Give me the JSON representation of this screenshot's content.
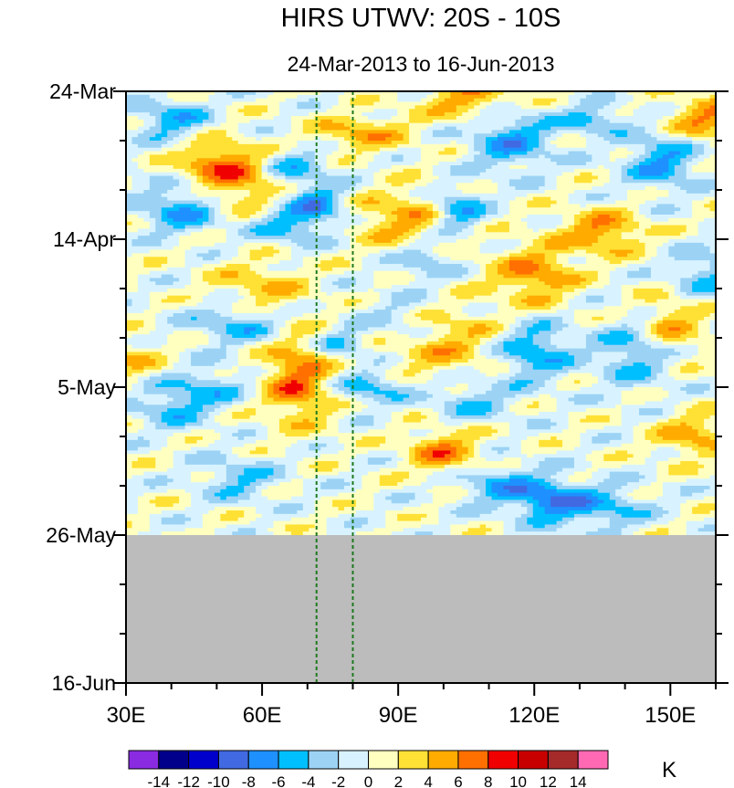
{
  "chart_data": {
    "type": "heatmap",
    "title": "HIRS UTWV: 20S - 10S",
    "subtitle": "24-Mar-2013 to 16-Jun-2013",
    "x_ticks": [
      {
        "value": 30,
        "label": "30E"
      },
      {
        "value": 60,
        "label": "60E"
      },
      {
        "value": 90,
        "label": "90E"
      },
      {
        "value": 120,
        "label": "120E"
      },
      {
        "value": 150,
        "label": "150E"
      }
    ],
    "xlim": [
      30,
      160
    ],
    "y_ticks": [
      {
        "value": 0,
        "label": "24-Mar"
      },
      {
        "value": 21,
        "label": "14-Apr"
      },
      {
        "value": 42,
        "label": "5-May"
      },
      {
        "value": 63,
        "label": "26-May"
      },
      {
        "value": 84,
        "label": "16-Jun"
      }
    ],
    "y_range_days": [
      0,
      84
    ],
    "missing_data_from_day": 63,
    "reference_lines_lon": [
      72,
      80
    ],
    "colorbar": {
      "unit": "K",
      "levels": [
        "-14",
        "-12",
        "-10",
        "-8",
        "-6",
        "-4",
        "-2",
        "0",
        "2",
        "4",
        "6",
        "8",
        "10",
        "12",
        "14"
      ],
      "colors": [
        "#8a2be2",
        "#00008b",
        "#0000cd",
        "#4169e1",
        "#1e90ff",
        "#00bfff",
        "#9cd3f5",
        "#d8f3ff",
        "#ffffc0",
        "#ffe135",
        "#ffab00",
        "#ff7000",
        "#f00000",
        "#c80000",
        "#a52a2a",
        "#ff69b4"
      ]
    },
    "missing_color": "#bcbcbc"
  }
}
